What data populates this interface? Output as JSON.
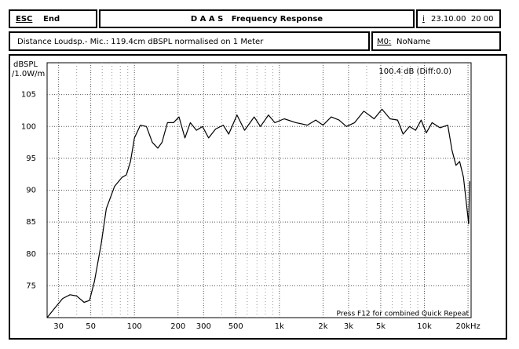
{
  "header": {
    "esc": "ESC",
    "end": "End",
    "title": "D A A S   Frequency Response",
    "info_icon": "i",
    "datetime": "23.10.00  20 00"
  },
  "subheader": {
    "description": "Distance Loudsp.- Mic.: 119.4cm dBSPL normalised on 1 Meter",
    "memory_label": "M0:",
    "memory_name": "NoName"
  },
  "chart_data": {
    "type": "line",
    "ylabel_line1": "dBSPL",
    "ylabel_line2": "/1.0W/m",
    "annotations": [
      "100.4 dB (Diff:0.0)",
      "Press F12 for combined Quick Repeat"
    ],
    "log_x": true,
    "grid": true,
    "xlim": [
      25,
      21000
    ],
    "ylim": [
      70,
      110
    ],
    "xticks": [
      30,
      50,
      100,
      200,
      300,
      500,
      {
        "value": 1000,
        "label": "1k"
      },
      {
        "value": 2000,
        "label": "2k"
      },
      {
        "value": 3000,
        "label": "3k"
      },
      {
        "value": 5000,
        "label": "5k"
      },
      {
        "value": 10000,
        "label": "10k"
      },
      {
        "value": 20000,
        "label": "20kHz"
      }
    ],
    "xminor": [
      40,
      60,
      70,
      80,
      90,
      400,
      600,
      700,
      800,
      900,
      4000,
      6000,
      7000,
      8000,
      9000
    ],
    "yticks": [
      75,
      80,
      85,
      90,
      95,
      100,
      105
    ],
    "x": [
      25,
      28,
      32,
      36,
      40,
      45,
      49,
      53,
      59,
      64,
      73,
      82,
      88,
      94,
      100,
      110,
      121,
      133,
      145,
      155,
      169,
      186,
      203,
      223,
      243,
      268,
      295,
      325,
      363,
      410,
      447,
      510,
      575,
      670,
      740,
      840,
      930,
      1080,
      1300,
      1560,
      1780,
      2000,
      2280,
      2580,
      2900,
      3300,
      3820,
      4500,
      5100,
      5800,
      6540,
      7130,
      7900,
      8700,
      9500,
      10300,
      11300,
      12800,
      14500,
      15500,
      16500,
      17500,
      18600,
      19800,
      20200,
      20500
    ],
    "series": [
      {
        "color": "#000000",
        "values": [
          70,
          71.4,
          73,
          73.6,
          73.4,
          72.4,
          72.7,
          75.7,
          81.6,
          87.1,
          90.6,
          92,
          92.4,
          94.5,
          98.2,
          100.2,
          100,
          97.5,
          96.6,
          97.5,
          100.6,
          100.6,
          101.5,
          98.2,
          100.6,
          99.4,
          100,
          98.2,
          99.6,
          100.2,
          98.8,
          101.8,
          99.4,
          101.5,
          100,
          101.8,
          100.6,
          101.2,
          100.6,
          100.2,
          101,
          100.2,
          101.5,
          101,
          100,
          100.6,
          102.4,
          101.2,
          102.7,
          101.2,
          101,
          98.8,
          100,
          99.4,
          101,
          99,
          100.6,
          99.8,
          100.2,
          96.3,
          93.9,
          94.5,
          92,
          86.5,
          84.7,
          91.4
        ]
      }
    ]
  }
}
